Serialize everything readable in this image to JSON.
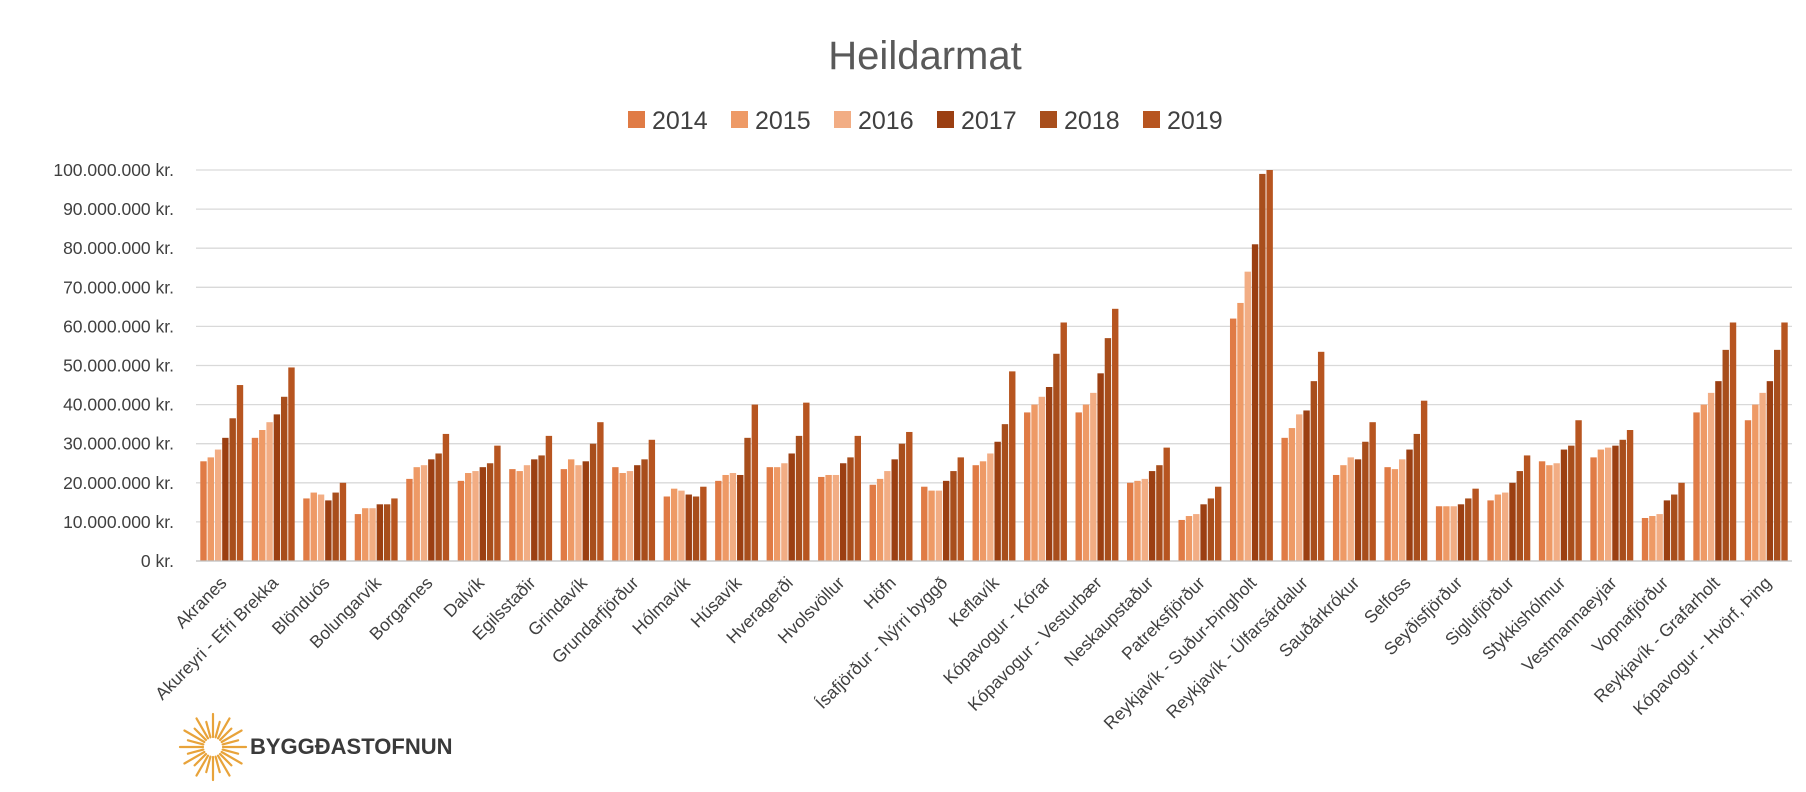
{
  "chart_data": {
    "type": "bar",
    "title": "Heildarmat",
    "legend_position": "top",
    "grid": true,
    "ylim": [
      0,
      100000000
    ],
    "y_ticks": [
      "0 kr.",
      "10.000.000 kr.",
      "20.000.000 kr.",
      "30.000.000 kr.",
      "40.000.000 kr.",
      "50.000.000 kr.",
      "60.000.000 kr.",
      "70.000.000 kr.",
      "80.000.000 kr.",
      "90.000.000 kr.",
      "100.000.000 kr."
    ],
    "categories": [
      "Akranes",
      "Akureyri - Efri Brekka",
      "Blönduós",
      "Bolungarvík",
      "Borgarnes",
      "Dalvík",
      "Egilsstaðir",
      "Grindavík",
      "Grundarfjörður",
      "Hólmavík",
      "Húsavík",
      "Hveragerði",
      "Hvolsvöllur",
      "Höfn",
      "Ísafjörður - Nýrri byggð",
      "Keflavík",
      "Kópavogur - Kórar",
      "Kópavogur - Vesturbær",
      "Neskaupstaður",
      "Patreksfjörður",
      "Reykjavík - Suður-Þingholt",
      "Reykjavík - Úlfarsárdalur",
      "Sauðárkrókur",
      "Selfoss",
      "Seyðisfjörður",
      "Siglufjörður",
      "Stykkishólmur",
      "Vestmannaeyjar",
      "Vopnafjörður",
      "Reykjavík - Grafarholt",
      "Kópavogur - Hvörf, Þing"
    ],
    "series": [
      {
        "name": "2014",
        "color": "#e07b45",
        "values": [
          25500000,
          31500000,
          16000000,
          12000000,
          21000000,
          20500000,
          23500000,
          23500000,
          24000000,
          16500000,
          20500000,
          24000000,
          21500000,
          19500000,
          19000000,
          24500000,
          38000000,
          38000000,
          20000000,
          10500000,
          62000000,
          31500000,
          22000000,
          24000000,
          14000000,
          15500000,
          25500000,
          26500000,
          11000000,
          38000000,
          36000000
        ]
      },
      {
        "name": "2015",
        "color": "#ee9a66",
        "values": [
          26500000,
          33500000,
          17500000,
          13500000,
          24000000,
          22500000,
          23000000,
          26000000,
          22500000,
          18500000,
          22000000,
          24000000,
          22000000,
          21000000,
          18000000,
          25500000,
          40000000,
          40000000,
          20500000,
          11500000,
          66000000,
          34000000,
          24500000,
          23500000,
          14000000,
          17000000,
          24500000,
          28500000,
          11500000,
          40000000,
          40000000
        ]
      },
      {
        "name": "2016",
        "color": "#f2ad84",
        "values": [
          28500000,
          35500000,
          17000000,
          13500000,
          24500000,
          23000000,
          24500000,
          24500000,
          23000000,
          18000000,
          22500000,
          25000000,
          22000000,
          23000000,
          18000000,
          27500000,
          42000000,
          43000000,
          21000000,
          12000000,
          74000000,
          37500000,
          26500000,
          26000000,
          14000000,
          17500000,
          25000000,
          29000000,
          12000000,
          43000000,
          43000000
        ]
      },
      {
        "name": "2017",
        "color": "#9b3f12",
        "values": [
          31500000,
          37500000,
          15500000,
          14500000,
          26000000,
          24000000,
          26000000,
          25500000,
          24500000,
          17000000,
          22000000,
          27500000,
          25000000,
          26000000,
          20500000,
          30500000,
          44500000,
          48000000,
          23000000,
          14500000,
          81000000,
          38500000,
          26000000,
          28500000,
          14500000,
          20000000,
          28500000,
          29500000,
          15500000,
          46000000,
          46000000
        ]
      },
      {
        "name": "2018",
        "color": "#a84e1c",
        "values": [
          36500000,
          42000000,
          17500000,
          14500000,
          27500000,
          25000000,
          27000000,
          30000000,
          26000000,
          16500000,
          31500000,
          32000000,
          26500000,
          30000000,
          23000000,
          35000000,
          53000000,
          57000000,
          24500000,
          16000000,
          99000000,
          46000000,
          30500000,
          32500000,
          16000000,
          23000000,
          29500000,
          31000000,
          17000000,
          54000000,
          54000000
        ]
      },
      {
        "name": "2019",
        "color": "#b75520",
        "values": [
          45000000,
          49500000,
          20000000,
          16000000,
          32500000,
          29500000,
          32000000,
          35500000,
          31000000,
          19000000,
          40000000,
          40500000,
          32000000,
          33000000,
          26500000,
          48500000,
          61000000,
          64500000,
          29000000,
          19000000,
          100000000,
          53500000,
          35500000,
          41000000,
          18500000,
          27000000,
          36000000,
          33500000,
          20000000,
          61000000,
          61000000
        ]
      }
    ]
  },
  "branding": {
    "logo_text": "BYGGÐASTOFNUN",
    "logo_color": "#e8a33a"
  }
}
